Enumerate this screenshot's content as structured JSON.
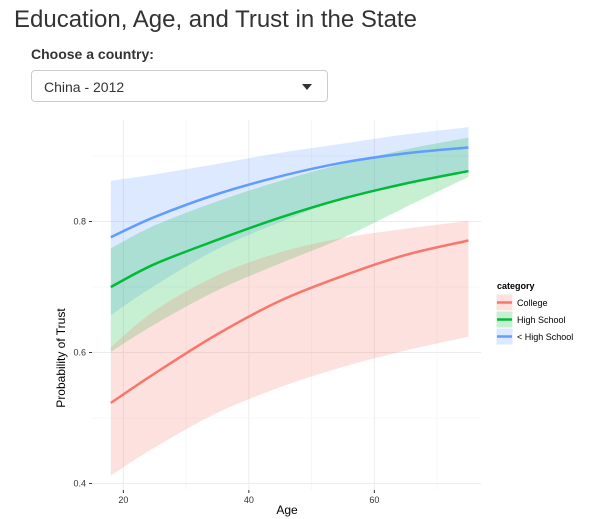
{
  "app": {
    "title": "Education, Age, and Trust in the State"
  },
  "country_selector": {
    "label": "Choose a country:",
    "selected": "China - 2012"
  },
  "chart_data": {
    "type": "line",
    "xlabel": "Age",
    "ylabel": "Probability of Trust",
    "xlim": [
      15,
      77
    ],
    "ylim": [
      0.39,
      0.955
    ],
    "xticks": [
      20,
      40,
      60
    ],
    "yticks": [
      0.4,
      0.6,
      0.8
    ],
    "grid": true,
    "legend_position": "right",
    "legend_title": "category",
    "x": [
      18,
      25,
      35,
      45,
      55,
      65,
      75
    ],
    "series": [
      {
        "name": "College",
        "color": "#F8766D",
        "values": [
          0.523,
          0.568,
          0.628,
          0.679,
          0.717,
          0.749,
          0.771
        ],
        "lower": [
          0.412,
          0.455,
          0.508,
          0.547,
          0.578,
          0.603,
          0.624
        ],
        "upper": [
          0.608,
          0.664,
          0.718,
          0.753,
          0.775,
          0.789,
          0.801
        ]
      },
      {
        "name": "High School",
        "color": "#00BA38",
        "values": [
          0.7,
          0.735,
          0.772,
          0.806,
          0.835,
          0.858,
          0.877
        ],
        "lower": [
          0.601,
          0.643,
          0.695,
          0.736,
          0.775,
          0.822,
          0.868
        ],
        "upper": [
          0.759,
          0.794,
          0.831,
          0.862,
          0.888,
          0.91,
          0.928
        ]
      },
      {
        "name": "< High School",
        "color": "#619CFF",
        "values": [
          0.776,
          0.807,
          0.842,
          0.869,
          0.89,
          0.904,
          0.913
        ],
        "lower": [
          0.657,
          0.702,
          0.758,
          0.799,
          0.835,
          0.86,
          0.878
        ],
        "upper": [
          0.862,
          0.872,
          0.888,
          0.905,
          0.919,
          0.933,
          0.944
        ]
      }
    ]
  }
}
